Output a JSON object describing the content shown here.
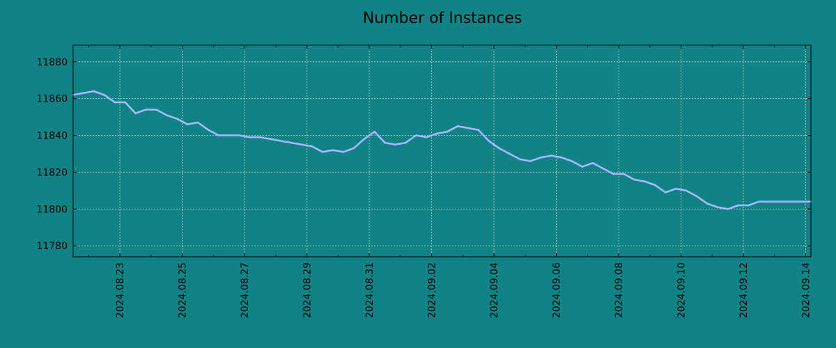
{
  "chart_data": {
    "type": "line",
    "title": "Number of Instances",
    "xlabel": "",
    "ylabel": "",
    "grid": true,
    "colors": {
      "background": "#108386",
      "line": "#a8b8ff",
      "grid": "#d0d0d0",
      "axis": "#000000"
    },
    "x_tick_labels": [
      "2024.08.23",
      "2024.08.25",
      "2024.08.27",
      "2024.08.29",
      "2024.08.31",
      "2024.09.02",
      "2024.09.04",
      "2024.09.06",
      "2024.09.08",
      "2024.09.10",
      "2024.09.12",
      "2024.09.14"
    ],
    "xlim": [
      "2024.08.21 12:00",
      "2024.09.14 04:00"
    ],
    "y_ticks": [
      11780,
      11800,
      11820,
      11840,
      11860,
      11880
    ],
    "ylim": [
      11774,
      11889
    ],
    "series": [
      {
        "x": [
          "2024.08.21 12:00",
          "2024.08.21 20:00",
          "2024.08.22 04:00",
          "2024.08.22 12:00",
          "2024.08.22 20:00",
          "2024.08.23 04:00",
          "2024.08.23 12:00",
          "2024.08.23 20:00",
          "2024.08.24 04:00",
          "2024.08.24 12:00",
          "2024.08.24 20:00",
          "2024.08.25 04:00",
          "2024.08.25 12:00",
          "2024.08.25 20:00",
          "2024.08.26 04:00",
          "2024.08.26 12:00",
          "2024.08.26 20:00",
          "2024.08.27 04:00",
          "2024.08.27 12:00",
          "2024.08.27 20:00",
          "2024.08.28 04:00",
          "2024.08.28 12:00",
          "2024.08.28 20:00",
          "2024.08.29 04:00",
          "2024.08.29 12:00",
          "2024.08.29 20:00",
          "2024.08.30 04:00",
          "2024.08.30 12:00",
          "2024.08.30 20:00",
          "2024.08.31 04:00",
          "2024.08.31 12:00",
          "2024.08.31 20:00",
          "2024.09.01 04:00",
          "2024.09.01 12:00",
          "2024.09.01 20:00",
          "2024.09.02 04:00",
          "2024.09.02 12:00",
          "2024.09.02 20:00",
          "2024.09.03 04:00",
          "2024.09.03 12:00",
          "2024.09.03 20:00",
          "2024.09.04 04:00",
          "2024.09.04 12:00",
          "2024.09.04 20:00",
          "2024.09.05 04:00",
          "2024.09.05 12:00",
          "2024.09.05 20:00",
          "2024.09.06 04:00",
          "2024.09.06 12:00",
          "2024.09.06 20:00",
          "2024.09.07 04:00",
          "2024.09.07 12:00",
          "2024.09.07 20:00",
          "2024.09.08 04:00",
          "2024.09.08 12:00",
          "2024.09.08 20:00",
          "2024.09.09 04:00",
          "2024.09.09 12:00",
          "2024.09.09 20:00",
          "2024.09.10 04:00",
          "2024.09.10 12:00",
          "2024.09.10 20:00",
          "2024.09.11 04:00",
          "2024.09.11 12:00",
          "2024.09.11 20:00",
          "2024.09.12 04:00",
          "2024.09.12 12:00",
          "2024.09.12 20:00",
          "2024.09.13 04:00",
          "2024.09.13 12:00",
          "2024.09.13 20:00",
          "2024.09.14 04:00"
        ],
        "values": [
          11862,
          11863,
          11864,
          11862,
          11858,
          11858,
          11852,
          11854,
          11854,
          11851,
          11849,
          11846,
          11847,
          11843,
          11840,
          11840,
          11840,
          11839,
          11839,
          11838,
          11837,
          11836,
          11835,
          11834,
          11831,
          11832,
          11831,
          11833,
          11838,
          11842,
          11836,
          11835,
          11836,
          11840,
          11839,
          11841,
          11842,
          11845,
          11844,
          11843,
          11837,
          11833,
          11830,
          11827,
          11826,
          11828,
          11829,
          11828,
          11826,
          11823,
          11825,
          11822,
          11819,
          11819,
          11816,
          11815,
          11813,
          11809,
          11811,
          11810,
          11807,
          11803,
          11801,
          11800,
          11802,
          11802,
          11804,
          11804,
          11804,
          11804,
          11804,
          11804
        ]
      }
    ]
  }
}
